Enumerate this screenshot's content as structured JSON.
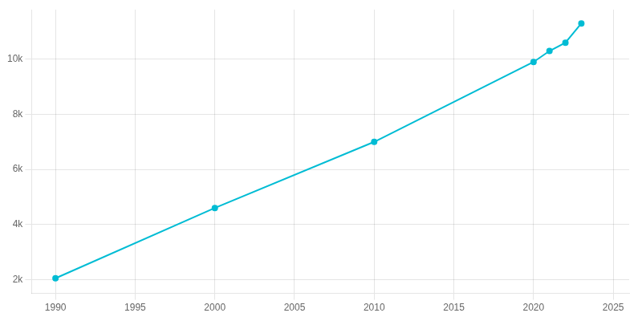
{
  "chart_data": {
    "type": "line",
    "x": [
      1990,
      2000,
      2010,
      2020,
      2021,
      2022,
      2023
    ],
    "values": [
      2050,
      4600,
      7000,
      9900,
      10300,
      10600,
      11300
    ],
    "color": "#00bcd4",
    "marker": "circle",
    "xlim": [
      1988.5,
      2026
    ],
    "xticks": [
      1990,
      1995,
      2000,
      2005,
      2010,
      2015,
      2020,
      2025
    ],
    "ylim": [
      1500,
      11800
    ],
    "yticks": [
      {
        "value": 2000,
        "label": "2k"
      },
      {
        "value": 4000,
        "label": "4k"
      },
      {
        "value": 6000,
        "label": "6k"
      },
      {
        "value": 8000,
        "label": "8k"
      },
      {
        "value": 10000,
        "label": "10k"
      }
    ],
    "grid": true
  }
}
